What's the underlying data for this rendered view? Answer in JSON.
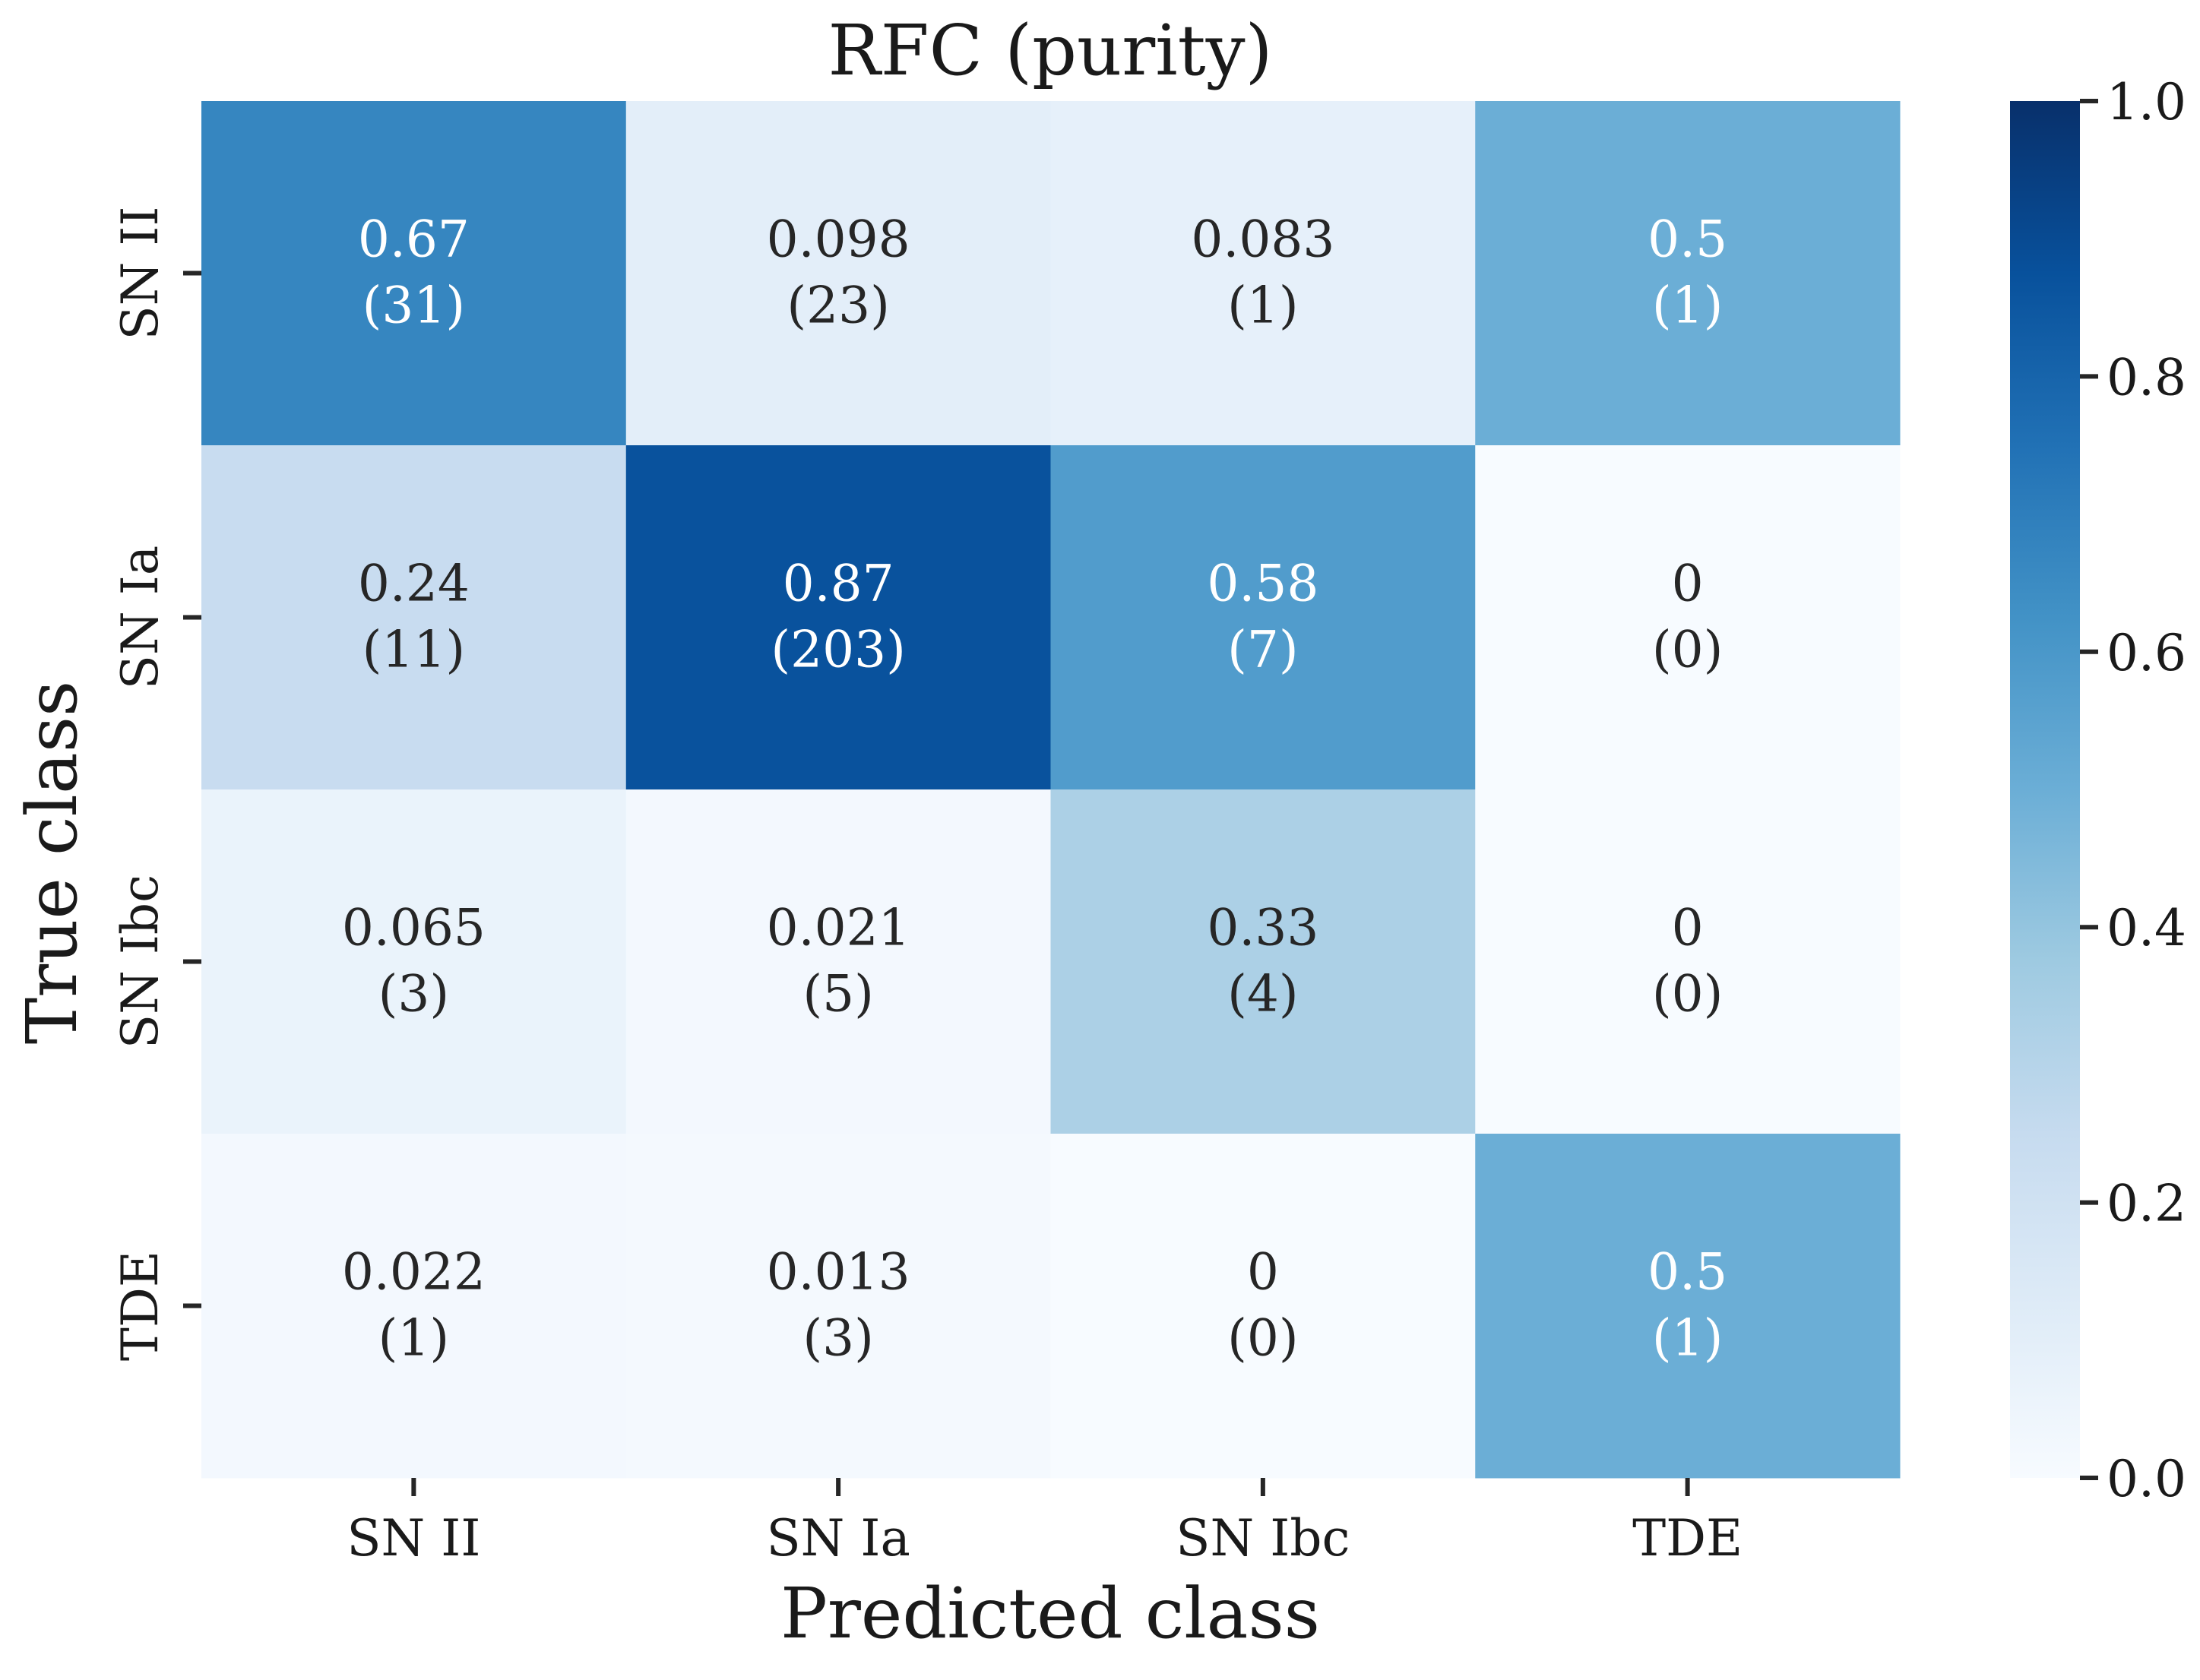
{
  "chart_data": {
    "type": "heatmap",
    "title": "RFC (purity)",
    "xlabel": "Predicted class",
    "ylabel": "True class",
    "x_categories": [
      "SN II",
      "SN Ia",
      "SN Ibc",
      "TDE"
    ],
    "y_categories": [
      "SN II",
      "SN Ia",
      "SN Ibc",
      "TDE"
    ],
    "values": [
      [
        0.67,
        0.098,
        0.083,
        0.5
      ],
      [
        0.24,
        0.87,
        0.58,
        0
      ],
      [
        0.065,
        0.021,
        0.33,
        0
      ],
      [
        0.022,
        0.013,
        0,
        0.5
      ]
    ],
    "counts": [
      [
        31,
        23,
        1,
        1
      ],
      [
        11,
        203,
        7,
        0
      ],
      [
        3,
        5,
        4,
        0
      ],
      [
        1,
        3,
        0,
        1
      ]
    ],
    "value_labels": [
      [
        "0.67",
        "0.098",
        "0.083",
        "0.5"
      ],
      [
        "0.24",
        "0.87",
        "0.58",
        "0"
      ],
      [
        "0.065",
        "0.021",
        "0.33",
        "0"
      ],
      [
        "0.022",
        "0.013",
        "0",
        "0.5"
      ]
    ],
    "count_labels": [
      [
        "(31)",
        "(23)",
        "(1)",
        "(1)"
      ],
      [
        "(11)",
        "(203)",
        "(7)",
        "(0)"
      ],
      [
        "(3)",
        "(5)",
        "(4)",
        "(0)"
      ],
      [
        "(1)",
        "(3)",
        "(0)",
        "(1)"
      ]
    ],
    "colorbar": {
      "colormap": "Blues",
      "range": [
        0.0,
        1.0
      ],
      "ticks": [
        "0.0",
        "0.2",
        "0.4",
        "0.6",
        "0.8",
        "1.0"
      ]
    },
    "legend": "colorbar-right",
    "grid": false
  }
}
